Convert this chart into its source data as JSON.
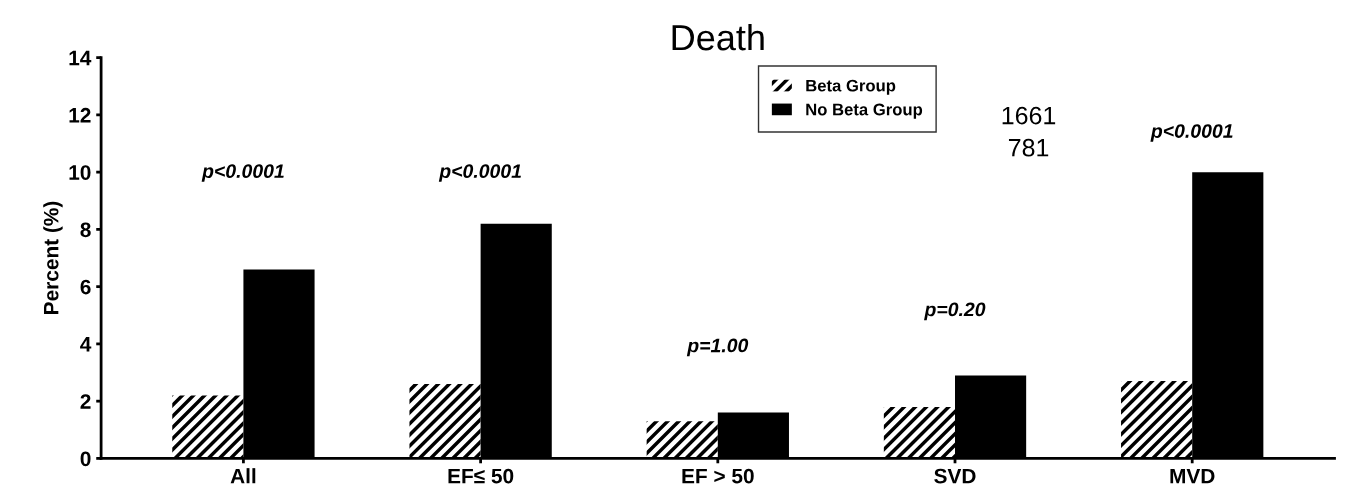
{
  "chart_data": {
    "type": "bar",
    "title": "Death",
    "ylabel": "Percent (%)",
    "categories": [
      "All",
      "EF≤ 50",
      "EF > 50",
      "SVD",
      "MVD"
    ],
    "series": [
      {
        "name": "Beta Group",
        "color": "#ffffff",
        "values": [
          2.2,
          2.6,
          1.3,
          1.8,
          2.7
        ]
      },
      {
        "name": "No Beta Group",
        "color": "#000000",
        "values": [
          6.6,
          8.2,
          1.6,
          2.9,
          10.0
        ]
      }
    ],
    "ylim": [
      0,
      14
    ],
    "yticks": [
      0,
      2,
      4,
      6,
      8,
      10,
      12,
      14
    ],
    "grid": false,
    "legend": "top center",
    "annotations": [
      "p<0.0001",
      "p<0.0001",
      "p=1.00",
      "p=0.20",
      "p<0.0001",
      "1661",
      "781"
    ]
  }
}
